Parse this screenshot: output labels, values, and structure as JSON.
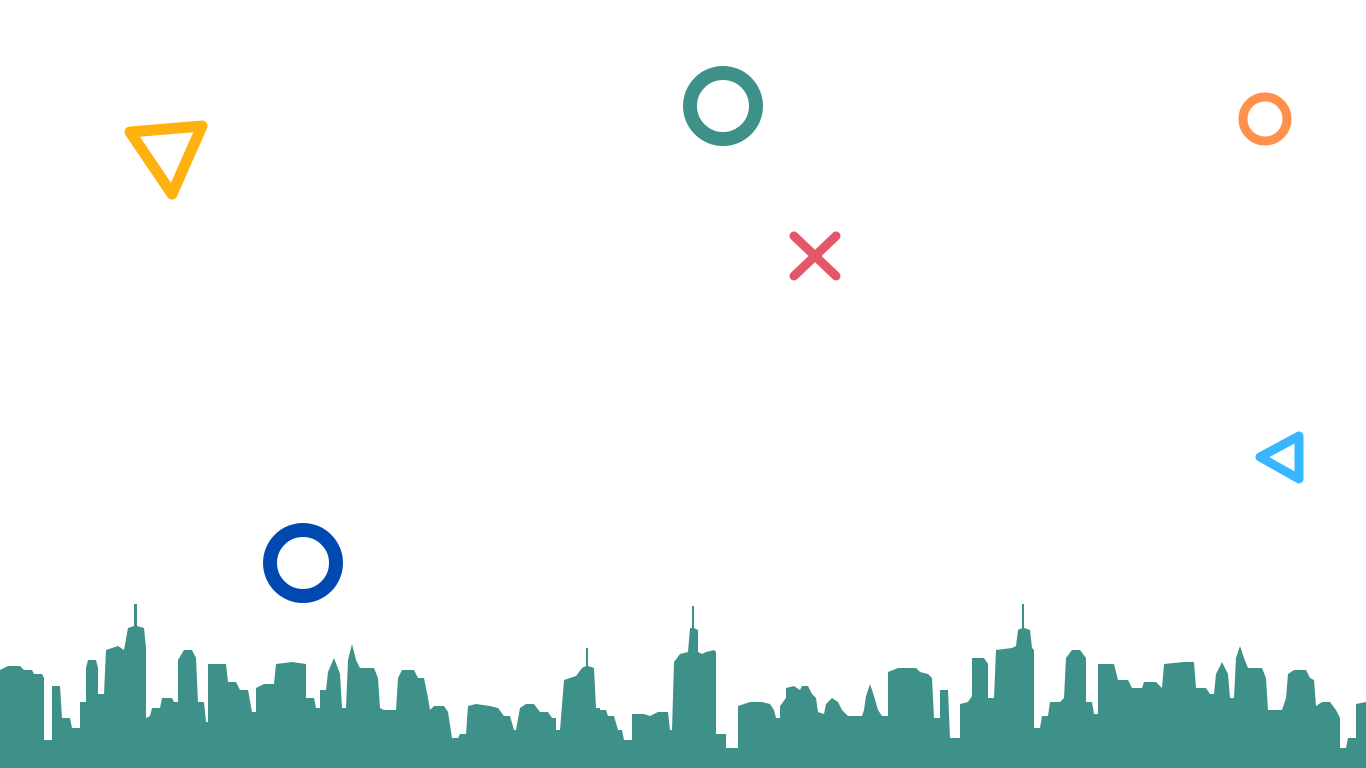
{
  "scene": {
    "background_color": "#ffffff",
    "skyline_color": "#3d9189"
  },
  "shapes": [
    {
      "id": "triangle-yellow",
      "kind": "triangle-outline",
      "color": "#ffb20f"
    },
    {
      "id": "circle-teal",
      "kind": "ring",
      "color": "#3d9189"
    },
    {
      "id": "circle-orange",
      "kind": "ring",
      "color": "#ff914d"
    },
    {
      "id": "cross-red",
      "kind": "cross",
      "color": "#e5566b"
    },
    {
      "id": "triangle-blue",
      "kind": "triangle-outline",
      "color": "#38b6ff"
    },
    {
      "id": "circle-navy",
      "kind": "ring",
      "color": "#0049b0"
    }
  ]
}
